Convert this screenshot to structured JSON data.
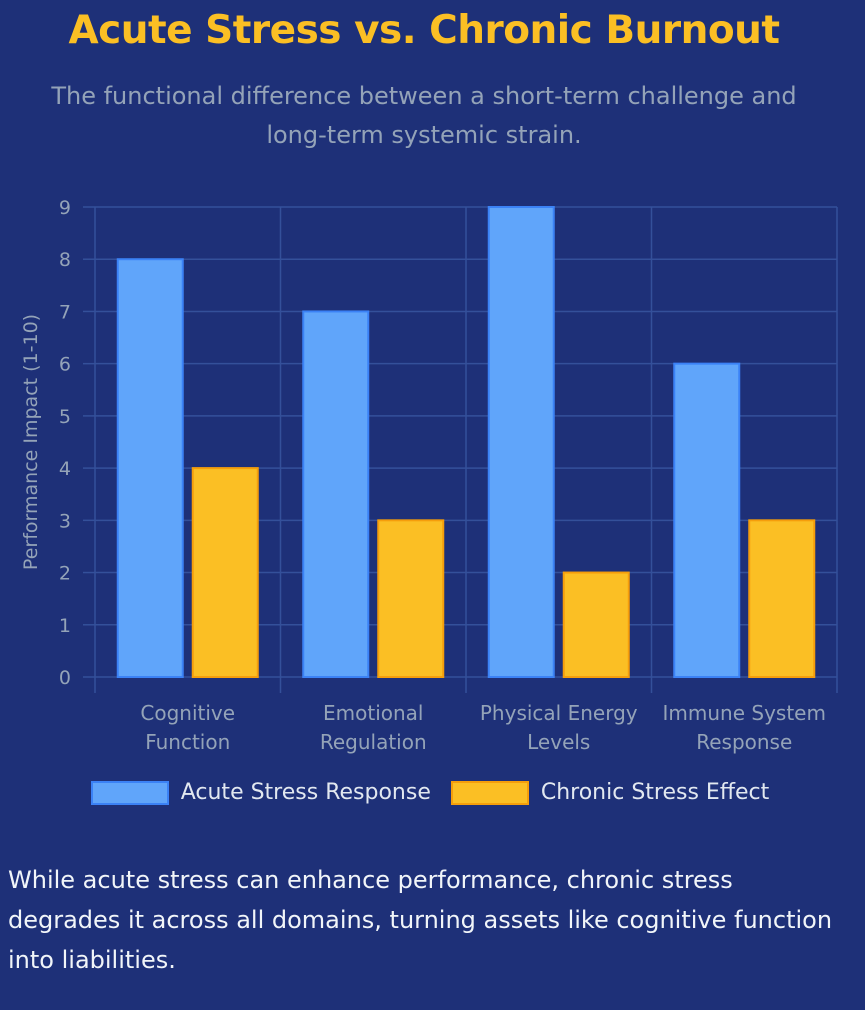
{
  "header": {
    "title": "Acute Stress vs. Chronic Burnout",
    "subtitle_line1": "The functional difference between a short-term challenge and",
    "subtitle_line2": "long-term systemic strain."
  },
  "colors": {
    "background": "#1e3078",
    "title": "#fbbf24",
    "acute": "#60a5fa",
    "acute_border": "#3b82f6",
    "chronic": "#fbbf24",
    "chronic_border": "#f59e0b",
    "grid": "#34509a",
    "tick_text": "#94a3b8"
  },
  "chart_data": {
    "type": "bar",
    "categories": [
      [
        "Cognitive",
        "Function"
      ],
      [
        "Emotional",
        "Regulation"
      ],
      [
        "Physical Energy",
        "Levels"
      ],
      [
        "Immune System",
        "Response"
      ]
    ],
    "series": [
      {
        "name": "Acute Stress Response",
        "values": [
          8,
          7,
          9,
          6
        ]
      },
      {
        "name": "Chronic Stress Effect",
        "values": [
          4,
          3,
          2,
          3
        ]
      }
    ],
    "ylabel": "Performance Impact (1-10)",
    "xlabel": "",
    "ylim": [
      0,
      9
    ],
    "yticks": [
      0,
      1,
      2,
      3,
      4,
      5,
      6,
      7,
      8,
      9
    ],
    "grid": true,
    "legend": "bottom"
  },
  "summary": "While acute stress can enhance performance, chronic stress degrades it across all domains, turning assets like cognitive function into liabilities."
}
